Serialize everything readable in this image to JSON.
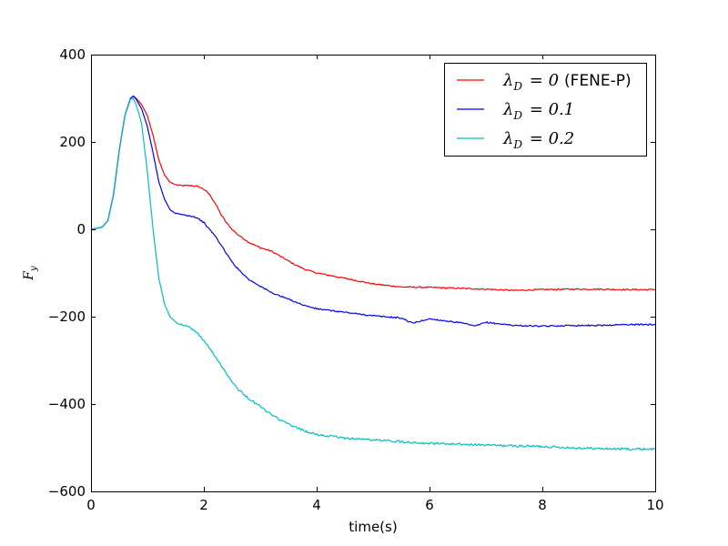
{
  "chart_data": {
    "type": "line",
    "xlabel": "time(s)",
    "ylabel": "F_y",
    "xlim": [
      0,
      10
    ],
    "ylim": [
      -600,
      400
    ],
    "xticks": [
      0,
      2,
      4,
      6,
      8,
      10
    ],
    "yticks": [
      -600,
      -400,
      -200,
      0,
      200,
      400
    ],
    "grid": false,
    "legend_position": "top-right",
    "series": [
      {
        "name": "λD = 0 (FENE-P)",
        "legend_symbol": "λ",
        "legend_sub": "D",
        "legend_value": "= 0",
        "legend_suffix": "(FENE-P)",
        "color": "#ff0000",
        "x": [
          0,
          0.2,
          0.3,
          0.4,
          0.5,
          0.6,
          0.7,
          0.75,
          0.8,
          0.9,
          1.0,
          1.1,
          1.2,
          1.3,
          1.4,
          1.5,
          1.6,
          1.7,
          1.8,
          1.9,
          2.0,
          2.1,
          2.2,
          2.3,
          2.4,
          2.5,
          2.6,
          2.8,
          3.0,
          3.2,
          3.4,
          3.6,
          3.8,
          4.0,
          4.5,
          5.0,
          5.5,
          6.0,
          6.5,
          7.0,
          7.5,
          8.0,
          8.5,
          9.0,
          9.5,
          10.0
        ],
        "y": [
          0,
          5,
          20,
          80,
          180,
          260,
          300,
          305,
          300,
          285,
          260,
          215,
          160,
          125,
          108,
          102,
          100,
          100,
          100,
          98,
          92,
          80,
          60,
          35,
          15,
          0,
          -12,
          -30,
          -42,
          -50,
          -65,
          -80,
          -92,
          -100,
          -112,
          -125,
          -132,
          -133,
          -135,
          -137,
          -140,
          -138,
          -137,
          -137,
          -138,
          -138
        ]
      },
      {
        "name": "λD = 0.1",
        "legend_symbol": "λ",
        "legend_sub": "D",
        "legend_value": "= 0.1",
        "legend_suffix": "",
        "color": "#0000ff",
        "x": [
          0,
          0.2,
          0.3,
          0.4,
          0.5,
          0.6,
          0.7,
          0.75,
          0.8,
          0.9,
          1.0,
          1.1,
          1.2,
          1.3,
          1.4,
          1.5,
          1.6,
          1.7,
          1.8,
          1.9,
          2.0,
          2.1,
          2.2,
          2.3,
          2.4,
          2.5,
          2.6,
          2.8,
          3.0,
          3.2,
          3.4,
          3.6,
          3.8,
          4.0,
          4.5,
          5.0,
          5.5,
          5.7,
          5.9,
          6.0,
          6.5,
          6.7,
          6.8,
          7.0,
          7.5,
          8.0,
          8.5,
          9.0,
          9.5,
          10.0
        ],
        "y": [
          0,
          5,
          20,
          80,
          180,
          260,
          300,
          305,
          298,
          275,
          235,
          175,
          110,
          70,
          45,
          36,
          34,
          32,
          30,
          25,
          15,
          0,
          -15,
          -35,
          -55,
          -75,
          -90,
          -115,
          -130,
          -145,
          -155,
          -165,
          -175,
          -182,
          -190,
          -198,
          -203,
          -215,
          -208,
          -205,
          -213,
          -218,
          -222,
          -213,
          -220,
          -222,
          -220,
          -220,
          -218,
          -218
        ]
      },
      {
        "name": "λD = 0.2",
        "legend_symbol": "λ",
        "legend_sub": "D",
        "legend_value": "= 0.2",
        "legend_suffix": "",
        "color": "#00bfbf",
        "x": [
          0,
          0.2,
          0.3,
          0.4,
          0.5,
          0.6,
          0.7,
          0.75,
          0.8,
          0.85,
          0.9,
          1.0,
          1.1,
          1.2,
          1.3,
          1.4,
          1.5,
          1.6,
          1.7,
          1.8,
          1.9,
          2.0,
          2.2,
          2.4,
          2.6,
          2.8,
          3.0,
          3.2,
          3.4,
          3.6,
          3.8,
          4.0,
          4.5,
          5.0,
          5.5,
          6.0,
          6.5,
          7.0,
          7.5,
          8.0,
          8.5,
          9.0,
          9.5,
          10.0
        ],
        "y": [
          0,
          5,
          20,
          80,
          180,
          260,
          298,
          300,
          285,
          265,
          240,
          130,
          0,
          -110,
          -170,
          -200,
          -212,
          -218,
          -222,
          -228,
          -240,
          -255,
          -290,
          -330,
          -365,
          -388,
          -405,
          -425,
          -440,
          -452,
          -462,
          -470,
          -478,
          -482,
          -486,
          -490,
          -492,
          -494,
          -496,
          -497,
          -500,
          -502,
          -503,
          -503
        ]
      }
    ]
  }
}
